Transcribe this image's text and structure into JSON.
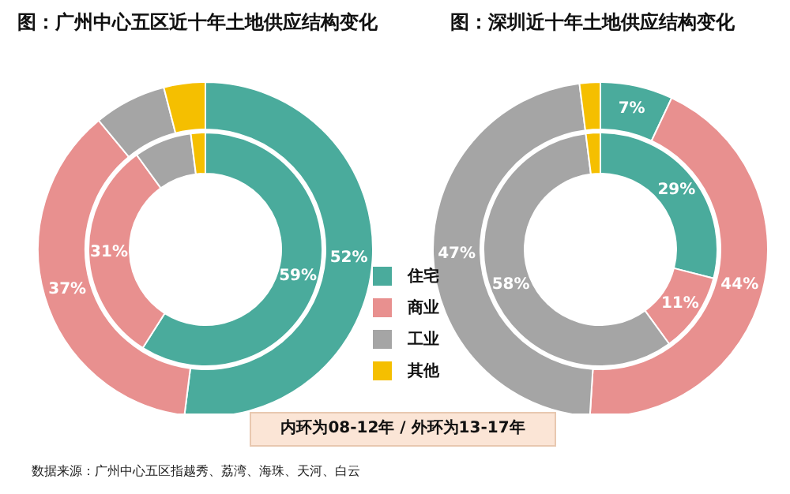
{
  "chart_data": [
    {
      "type": "donut",
      "title": "图：广州中心五区近十年土地供应结构变化",
      "categories": [
        "住宅",
        "商业",
        "工业",
        "其他"
      ],
      "colors": [
        "#4aab9c",
        "#e8908f",
        "#a5a5a5",
        "#f5bf00"
      ],
      "legend": "right",
      "series": [
        {
          "values": [
            59,
            31,
            8,
            2
          ],
          "value_labels": [
            "59%",
            "31%",
            null,
            null
          ]
        },
        {
          "values": [
            52,
            37,
            7,
            4
          ],
          "value_labels": [
            "52%",
            "37%",
            null,
            null
          ]
        }
      ],
      "annotations": [
        "内环为08-12年 / 外环为13-17年",
        "数据来源：广州中心五区指越秀、荔湾、海珠、天河、白云"
      ]
    },
    {
      "type": "donut",
      "title": "图：深圳近十年土地供应结构变化",
      "categories": [
        null,
        null,
        null,
        null
      ],
      "colors": [
        "#4aab9c",
        "#e8908f",
        "#a5a5a5",
        "#f5bf00"
      ],
      "series": [
        {
          "values": [
            29,
            11,
            58,
            2
          ],
          "value_labels": [
            "29%",
            "11%",
            "58%",
            null
          ]
        },
        {
          "values": [
            7,
            44,
            47,
            2
          ],
          "value_labels": [
            "7%",
            "44%",
            "47%",
            null
          ]
        }
      ]
    }
  ]
}
